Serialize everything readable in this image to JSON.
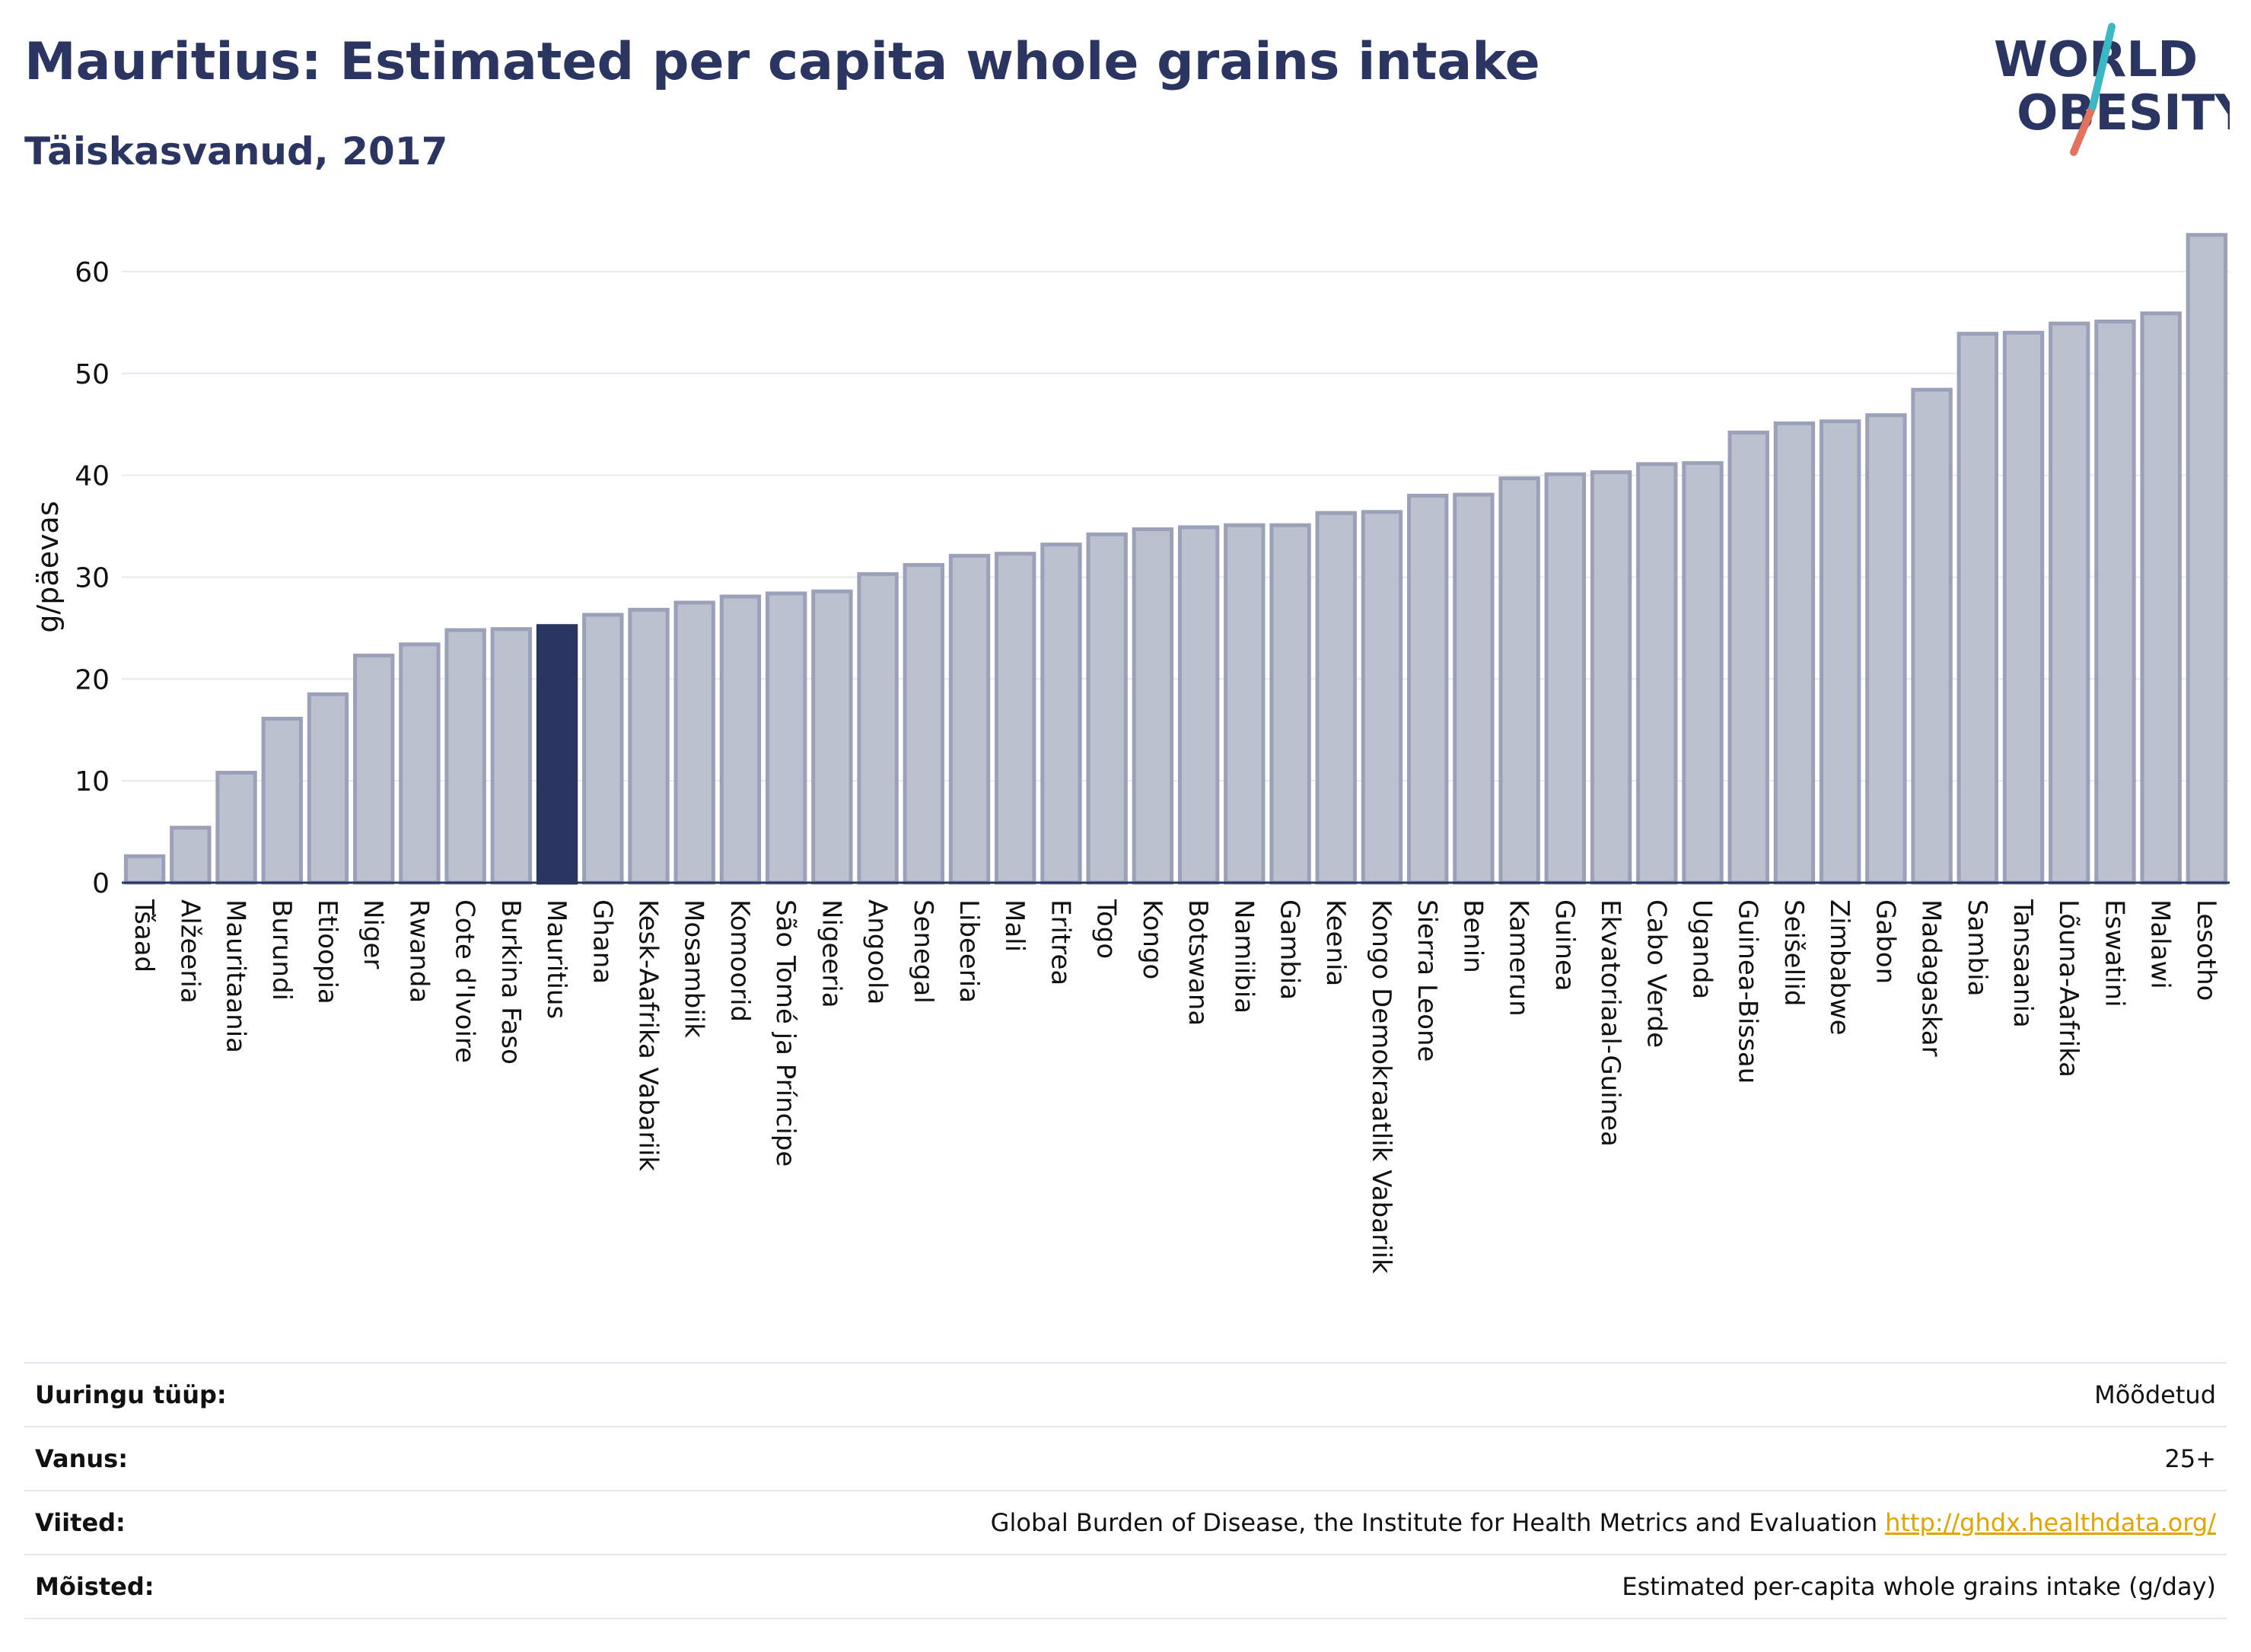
{
  "header": {
    "title": "Mauritius: Estimated per capita whole grains intake",
    "subtitle": "Täiskasvanud, 2017"
  },
  "logo": {
    "line1": "WORLD",
    "line2": "OBESITY"
  },
  "colors": {
    "bar": "#bcc1d0",
    "bar_border": "#9aa1b8",
    "highlight": "#2b3561",
    "grid": "#e8eaef",
    "axis": "#2b3561"
  },
  "chart_data": {
    "type": "bar",
    "ylabel": "g/päevas",
    "ylim": [
      0,
      65
    ],
    "yticks": [
      0,
      10,
      20,
      30,
      40,
      50,
      60
    ],
    "grid": true,
    "highlight": "Mauritius",
    "categories": [
      "Tšaad",
      "Alžeeria",
      "Mauritaania",
      "Burundi",
      "Etioopia",
      "Niger",
      "Rwanda",
      "Cote d'Ivoire",
      "Burkina Faso",
      "Mauritius",
      "Ghana",
      "Kesk-Aafrika Vabariik",
      "Mosambiik",
      "Komoorid",
      "São Tomé ja Príncipe",
      "Nigeeria",
      "Angoola",
      "Senegal",
      "Libeeria",
      "Mali",
      "Eritrea",
      "Togo",
      "Kongo",
      "Botswana",
      "Namiibia",
      "Gambia",
      "Keenia",
      "Kongo Demokraatlik Vabariik",
      "Sierra Leone",
      "Benin",
      "Kamerun",
      "Guinea",
      "Ekvatoriaal-Guinea",
      "Cabo Verde",
      "Uganda",
      "Guinea-Bissau",
      "Seišellid",
      "Zimbabwe",
      "Gabon",
      "Madagaskar",
      "Sambia",
      "Tansaania",
      "Lõuna-Aafrika",
      "Eswatini",
      "Malawi",
      "Lesotho"
    ],
    "values": [
      2.6,
      5.4,
      10.8,
      16.1,
      18.5,
      22.3,
      23.4,
      24.8,
      24.9,
      25.2,
      26.3,
      26.8,
      27.5,
      28.1,
      28.4,
      28.6,
      30.3,
      31.2,
      32.1,
      32.3,
      33.2,
      34.2,
      34.7,
      34.9,
      35.1,
      35.1,
      36.3,
      36.4,
      38.0,
      38.1,
      39.7,
      40.1,
      40.3,
      41.1,
      41.2,
      44.2,
      45.1,
      45.3,
      45.9,
      48.4,
      53.9,
      54.0,
      54.9,
      55.1,
      55.9,
      63.6
    ]
  },
  "meta": [
    {
      "label": "Uuringu tüüp:",
      "value": "Mõõdetud",
      "link": ""
    },
    {
      "label": "Vanus:",
      "value": "25+",
      "link": ""
    },
    {
      "label": "Viited:",
      "value": "Global Burden of Disease, the Institute for Health Metrics and Evaluation",
      "link": "http://ghdx.healthdata.org/"
    },
    {
      "label": "Mõisted:",
      "value": "Estimated per-capita whole grains intake (g/day)",
      "link": ""
    }
  ]
}
